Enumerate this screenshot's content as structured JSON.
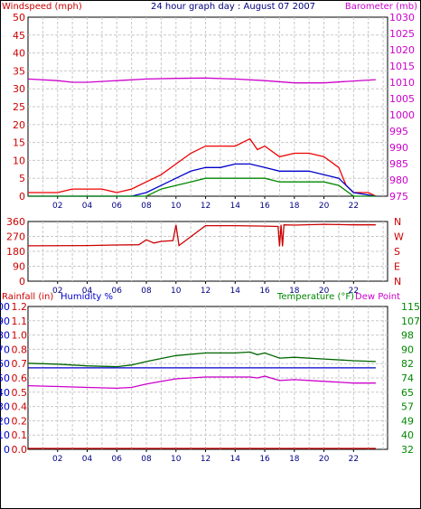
{
  "chart_data": [
    {
      "type": "line",
      "title": "24 hour graph day : August 07 2007",
      "left_axis_label": "Windspeed (mph)",
      "right_axis_label": "Barometer (mb)",
      "left_ticks": [
        0,
        5,
        10,
        15,
        20,
        25,
        30,
        35,
        40,
        45,
        50
      ],
      "right_ticks": [
        975,
        980,
        985,
        990,
        995,
        1000,
        1005,
        1010,
        1015,
        1020,
        1025,
        1030
      ],
      "x_ticks": [
        "02",
        "04",
        "06",
        "08",
        "10",
        "12",
        "14",
        "16",
        "18",
        "20",
        "22"
      ],
      "grid": true,
      "colors": {
        "gust": "#ee0000",
        "wind": "#0000cc",
        "wind_min": "#008800",
        "barometer": "#cc00cc",
        "left_axis": "#cc0000",
        "right_axis": "#cc00cc"
      },
      "series": [
        {
          "key": "barometer",
          "axis": "right",
          "color": "#cc00cc",
          "x": [
            0,
            2,
            3,
            4,
            6,
            8,
            10,
            12,
            14,
            16,
            18,
            20,
            22,
            23.5
          ],
          "values": [
            1011,
            1010.5,
            1010,
            1010,
            1010.5,
            1011,
            1011.2,
            1011.3,
            1011,
            1010.5,
            1009.8,
            1009.8,
            1010.4,
            1010.8
          ]
        },
        {
          "key": "gust",
          "axis": "left",
          "color": "#ee0000",
          "x": [
            0,
            1,
            2,
            3,
            4,
            5,
            6,
            7,
            8,
            9,
            10,
            11,
            12,
            13,
            14,
            15,
            15.5,
            16,
            17,
            18,
            19,
            20,
            21,
            21.5,
            22,
            23,
            23.5
          ],
          "values": [
            1,
            1,
            1,
            2,
            2,
            2,
            1,
            2,
            4,
            6,
            9,
            12,
            14,
            14,
            14,
            16,
            13,
            14,
            11,
            12,
            12,
            11,
            8,
            3,
            1,
            1,
            0
          ]
        },
        {
          "key": "wind",
          "axis": "left",
          "color": "#0000cc",
          "x": [
            0,
            2,
            4,
            6,
            7,
            8,
            9,
            10,
            11,
            12,
            13,
            14,
            15,
            16,
            17,
            18,
            19,
            20,
            21,
            22,
            23.5
          ],
          "values": [
            0,
            0,
            0,
            0,
            0,
            1,
            3,
            5,
            7,
            8,
            8,
            9,
            9,
            8,
            7,
            7,
            7,
            6,
            5,
            1,
            0
          ]
        },
        {
          "key": "wind_min",
          "axis": "left",
          "color": "#008800",
          "x": [
            0,
            2,
            4,
            6,
            7,
            8,
            9,
            10,
            11,
            12,
            13,
            14,
            15,
            16,
            17,
            18,
            19,
            20,
            21,
            22,
            23.5
          ],
          "values": [
            0,
            0,
            0,
            0,
            0,
            0,
            2,
            3,
            4,
            5,
            5,
            5,
            5,
            5,
            4,
            4,
            4,
            4,
            3,
            0,
            0
          ]
        }
      ]
    },
    {
      "type": "line",
      "left_ticks": [
        "0",
        "90",
        "180",
        "270",
        "360"
      ],
      "right_ticks": [
        "N",
        "E",
        "S",
        "W",
        "N"
      ],
      "x_ticks": [
        "02",
        "04",
        "06",
        "08",
        "10",
        "12",
        "14",
        "16",
        "18",
        "20",
        "22"
      ],
      "colors": {
        "direction": "#cc0000",
        "left_axis": "#cc0000",
        "right_axis": "#cc0000"
      },
      "series": [
        {
          "key": "direction",
          "color": "#cc0000",
          "x": [
            0,
            4,
            6,
            7.5,
            8,
            8.5,
            9,
            9.8,
            10,
            10.2,
            12,
            14,
            16,
            16.9,
            17,
            17.1,
            17.2,
            17.3,
            18,
            20,
            22,
            23.5
          ],
          "values": [
            213,
            215,
            218,
            220,
            250,
            230,
            240,
            245,
            340,
            215,
            335,
            335,
            332,
            330,
            210,
            340,
            210,
            340,
            338,
            343,
            340,
            340
          ]
        }
      ]
    },
    {
      "type": "line",
      "left_axis_label_1": "Rainfall (in)",
      "left_axis_label_2": "Humidity %",
      "right_axis_label_1": "Temperature (°F)",
      "right_axis_label_2": "Dew Point",
      "rain_ticks": [
        "0.0",
        "0.1",
        "0.2",
        "0.4",
        "0.5",
        "0.6",
        "0.7",
        "0.8",
        "1.0",
        "1.1",
        "1.2"
      ],
      "humidity_ticks": [
        "0",
        "10",
        "20",
        "30",
        "40",
        "50",
        "60",
        "70",
        "80",
        "90",
        "100"
      ],
      "temp_ticks": [
        "32",
        "40",
        "49",
        "57",
        "65",
        "74",
        "82",
        "90",
        "98",
        "107",
        "115"
      ],
      "x_ticks": [
        "02",
        "04",
        "06",
        "08",
        "10",
        "12",
        "14",
        "16",
        "18",
        "20",
        "22"
      ],
      "colors": {
        "temperature": "#006600",
        "dewpoint": "#cc00cc",
        "humidity": "#0000cc",
        "rain": "#cc0000",
        "rain_axis": "#cc0000",
        "humidity_axis": "#0000cc",
        "temp_axis": "#008800",
        "dew_axis": "#cc00cc"
      },
      "series": [
        {
          "key": "temperature",
          "color": "#006600",
          "x": [
            0,
            2,
            4,
            6,
            7,
            8,
            10,
            12,
            14,
            15,
            15.5,
            16,
            17,
            18,
            20,
            22,
            23.5
          ],
          "values": [
            82,
            81.5,
            80.5,
            80,
            81,
            83,
            86.5,
            88,
            88,
            88.5,
            87,
            88,
            85,
            85.5,
            84.5,
            83.5,
            83
          ]
        },
        {
          "key": "dewpoint",
          "color": "#cc00cc",
          "x": [
            0,
            2,
            4,
            6,
            7,
            8,
            10,
            12,
            14,
            15,
            15.5,
            16,
            17,
            18,
            20,
            22,
            23.5
          ],
          "values": [
            69,
            68.5,
            68,
            67.5,
            68,
            70,
            73,
            74,
            74,
            74,
            73.5,
            74.5,
            72,
            72.5,
            71.5,
            70.5,
            70.5
          ]
        },
        {
          "key": "humidity",
          "color": "#0000cc",
          "x": [
            0,
            23.5
          ],
          "values": [
            57,
            57
          ]
        },
        {
          "key": "rain",
          "color": "#cc0000",
          "x": [
            0,
            23.5
          ],
          "values": [
            0,
            0
          ]
        }
      ]
    }
  ]
}
